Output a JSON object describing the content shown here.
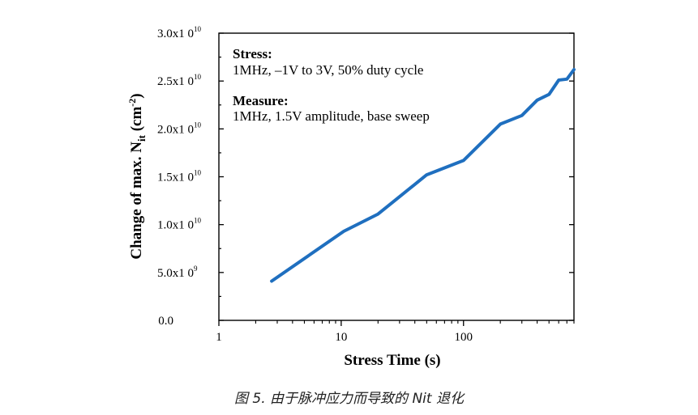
{
  "chart_data": {
    "type": "line",
    "xscale": "log",
    "xlim": [
      1,
      800
    ],
    "ylim": [
      0,
      30000000000.0
    ],
    "xticks": [
      {
        "value": 1,
        "label": "1"
      },
      {
        "value": 10,
        "label": "10"
      },
      {
        "value": 100,
        "label": "100"
      }
    ],
    "yticks": [
      {
        "value": 0,
        "mantissa": "0.0",
        "exp": ""
      },
      {
        "value": 5000000000.0,
        "mantissa": "5.0x1 0",
        "exp": "9"
      },
      {
        "value": 10000000000.0,
        "mantissa": "1.0x1 0",
        "exp": "10"
      },
      {
        "value": 15000000000.0,
        "mantissa": "1.5x1 0",
        "exp": "10"
      },
      {
        "value": 20000000000.0,
        "mantissa": "2.0x1 0",
        "exp": "10"
      },
      {
        "value": 25000000000.0,
        "mantissa": "2.5x1 0",
        "exp": "10"
      },
      {
        "value": 30000000000.0,
        "mantissa": "3.0x1 0",
        "exp": "10"
      }
    ],
    "xlabel": "Stress  Time (s)",
    "ylabel_main": "Change of max.   N",
    "ylabel_sub": "it",
    "ylabel_unit": " (cm",
    "ylabel_sup": "-2",
    "ylabel_close": ")",
    "series": [
      {
        "name": "Nit",
        "color": "#1f6fbf",
        "x": [
          2.7,
          10.5,
          20,
          50,
          100,
          200,
          300,
          400,
          500,
          600,
          700,
          800
        ],
        "y": [
          4100000000.0,
          9300000000.0,
          11100000000.0,
          15200000000.0,
          16700000000.0,
          20500000000.0,
          21400000000.0,
          23000000000.0,
          23600000000.0,
          25100000000.0,
          25200000000.0,
          26200000000.0
        ]
      }
    ],
    "annotations": {
      "stress_title": "Stress:",
      "stress_text": "1MHz, –1V to 3V, 50% duty cycle",
      "measure_title": "Measure:",
      "measure_text": "1MHz, 1.5V amplitude, base sweep"
    }
  },
  "caption": "图  5. 由于脉冲应力而导致的  Nit  退化"
}
